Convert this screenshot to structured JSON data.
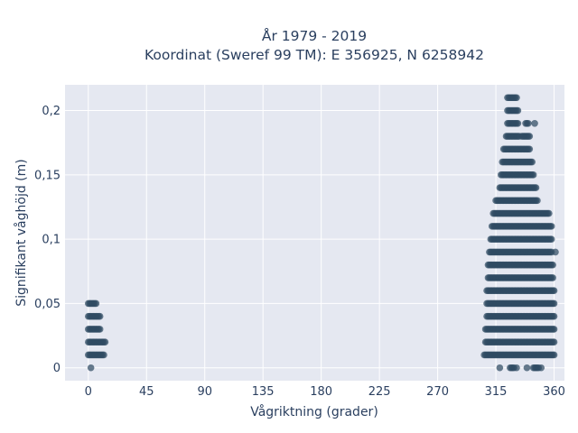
{
  "chart_data": {
    "type": "scatter",
    "title_line1": "År 1979 - 2019",
    "title_line2": "Koordinat (Sweref 99 TM): E 356925, N 6258942",
    "xlabel": "Vågriktning (grader)",
    "ylabel": "Signifikant våghöjd (m)",
    "xlim": [
      -18,
      368
    ],
    "ylim": [
      -0.01,
      0.22
    ],
    "xticks": [
      0,
      45,
      90,
      135,
      180,
      225,
      270,
      315,
      360
    ],
    "xtick_labels": [
      "0",
      "45",
      "90",
      "135",
      "180",
      "225",
      "270",
      "315",
      "360"
    ],
    "yticks": [
      0,
      0.05,
      0.1,
      0.15,
      0.2
    ],
    "ytick_labels": [
      "0",
      "0,05",
      "0,1",
      "0,15",
      "0,2"
    ],
    "grid": true,
    "marker_color": "#2f4b62",
    "background_color": "#e5e8f1",
    "series": [
      {
        "values": [
          {
            "y": 0.05,
            "x": [
              0,
              1,
              2,
              3,
              4,
              5,
              6
            ]
          },
          {
            "y": 0.04,
            "x": [
              0,
              1,
              2,
              3,
              4,
              5,
              6,
              7,
              8,
              9
            ]
          },
          {
            "y": 0.03,
            "x": [
              0,
              1,
              2,
              3,
              4,
              5,
              6,
              7,
              8,
              9
            ]
          },
          {
            "y": 0.02,
            "x": [
              0,
              1,
              2,
              3,
              4,
              5,
              6,
              7,
              8,
              9,
              10,
              11,
              12,
              13
            ]
          },
          {
            "y": 0.01,
            "x": [
              0,
              1,
              2,
              3,
              4,
              5,
              6,
              7,
              8,
              9,
              10,
              11,
              12
            ]
          },
          {
            "y": 0.0,
            "x": [
              2
            ]
          },
          {
            "y": 0.21,
            "x": [
              324,
              325,
              326,
              327,
              328,
              329,
              330,
              331
            ]
          },
          {
            "y": 0.2,
            "x": [
              324,
              325,
              326,
              327,
              328,
              329,
              330,
              331,
              332
            ]
          },
          {
            "y": 0.19,
            "x": [
              324,
              325,
              326,
              327,
              328,
              329,
              330,
              331,
              332,
              338,
              339,
              340,
              345
            ]
          },
          {
            "y": 0.18,
            "x": [
              323,
              324,
              325,
              326,
              327,
              328,
              329,
              330,
              331,
              332,
              333,
              335,
              336,
              337,
              338,
              339,
              340,
              341
            ]
          },
          {
            "y": 0.17,
            "x": [
              321,
              322,
              323,
              324,
              325,
              326,
              327,
              328,
              329,
              330,
              331,
              332,
              333,
              334,
              335,
              336,
              337,
              338,
              339,
              340,
              341
            ]
          },
          {
            "y": 0.16,
            "x": [
              320,
              321,
              322,
              323,
              324,
              325,
              326,
              327,
              328,
              329,
              330,
              331,
              332,
              333,
              334,
              335,
              336,
              337,
              338,
              339,
              340,
              341,
              342,
              343
            ]
          },
          {
            "y": 0.15,
            "x": [
              319,
              320,
              321,
              322,
              323,
              324,
              325,
              326,
              327,
              328,
              329,
              330,
              331,
              332,
              333,
              334,
              335,
              336,
              337,
              338,
              339,
              340,
              341,
              342,
              343,
              344
            ]
          },
          {
            "y": 0.14,
            "x": [
              318,
              319,
              320,
              321,
              322,
              323,
              324,
              325,
              326,
              327,
              328,
              329,
              330,
              331,
              332,
              333,
              334,
              335,
              336,
              337,
              338,
              339,
              340,
              341,
              342,
              343,
              344,
              345,
              346
            ]
          },
          {
            "y": 0.13,
            "x": [
              315,
              316,
              317,
              318,
              319,
              320,
              321,
              322,
              323,
              324,
              325,
              326,
              327,
              328,
              329,
              330,
              331,
              332,
              333,
              334,
              335,
              336,
              337,
              338,
              339,
              340,
              341,
              342,
              343,
              344,
              345,
              346,
              347
            ]
          },
          {
            "y": 0.12,
            "x": [
              313,
              314,
              315,
              316,
              317,
              318,
              319,
              320,
              321,
              322,
              323,
              324,
              325,
              326,
              327,
              328,
              329,
              330,
              331,
              332,
              333,
              334,
              335,
              336,
              337,
              338,
              339,
              340,
              341,
              342,
              343,
              344,
              345,
              346,
              347,
              348,
              349,
              350,
              351,
              352,
              353,
              354,
              355,
              356
            ]
          },
          {
            "y": 0.11,
            "x": [
              312,
              313,
              314,
              315,
              316,
              317,
              318,
              319,
              320,
              321,
              322,
              323,
              324,
              325,
              326,
              327,
              328,
              329,
              330,
              331,
              332,
              333,
              334,
              335,
              336,
              337,
              338,
              339,
              340,
              341,
              342,
              343,
              344,
              345,
              346,
              347,
              348,
              349,
              350,
              351,
              352,
              353,
              354,
              355,
              356,
              357,
              358
            ]
          },
          {
            "y": 0.1,
            "x": [
              311,
              312,
              313,
              314,
              315,
              316,
              317,
              318,
              319,
              320,
              321,
              322,
              323,
              324,
              325,
              326,
              327,
              328,
              329,
              330,
              331,
              332,
              333,
              334,
              335,
              336,
              337,
              338,
              339,
              340,
              341,
              342,
              343,
              344,
              345,
              346,
              347,
              348,
              349,
              350,
              351,
              352,
              353,
              354,
              355,
              356,
              357,
              358
            ]
          },
          {
            "y": 0.09,
            "x": [
              310,
              311,
              312,
              313,
              314,
              315,
              316,
              317,
              318,
              319,
              320,
              321,
              322,
              323,
              324,
              325,
              326,
              327,
              328,
              329,
              330,
              331,
              332,
              333,
              334,
              335,
              336,
              337,
              338,
              339,
              340,
              341,
              342,
              343,
              344,
              345,
              346,
              347,
              348,
              349,
              350,
              351,
              352,
              353,
              354,
              355,
              356,
              357,
              358,
              361
            ]
          },
          {
            "y": 0.08,
            "x": [
              309,
              310,
              311,
              312,
              313,
              314,
              315,
              316,
              317,
              318,
              319,
              320,
              321,
              322,
              323,
              324,
              325,
              326,
              327,
              328,
              329,
              330,
              331,
              332,
              333,
              334,
              335,
              336,
              337,
              338,
              339,
              340,
              341,
              342,
              343,
              344,
              345,
              346,
              347,
              348,
              349,
              350,
              351,
              352,
              353,
              354,
              355,
              356,
              357,
              358,
              359
            ]
          },
          {
            "y": 0.07,
            "x": [
              309,
              310,
              311,
              312,
              313,
              314,
              315,
              316,
              317,
              318,
              319,
              320,
              321,
              322,
              323,
              324,
              325,
              326,
              327,
              328,
              329,
              330,
              331,
              332,
              333,
              334,
              335,
              336,
              337,
              338,
              339,
              340,
              341,
              342,
              343,
              344,
              345,
              346,
              347,
              348,
              349,
              350,
              351,
              352,
              353,
              354,
              355,
              356,
              357,
              358,
              359
            ]
          },
          {
            "y": 0.06,
            "x": [
              308,
              309,
              310,
              311,
              312,
              313,
              314,
              315,
              316,
              317,
              318,
              319,
              320,
              321,
              322,
              323,
              324,
              325,
              326,
              327,
              328,
              329,
              330,
              331,
              332,
              333,
              334,
              335,
              336,
              337,
              338,
              339,
              340,
              341,
              342,
              343,
              344,
              345,
              346,
              347,
              348,
              349,
              350,
              351,
              352,
              353,
              354,
              355,
              356,
              357,
              358,
              359,
              360
            ]
          },
          {
            "y": 0.05,
            "x": [
              308,
              309,
              310,
              311,
              312,
              313,
              314,
              315,
              316,
              317,
              318,
              319,
              320,
              321,
              322,
              323,
              324,
              325,
              326,
              327,
              328,
              329,
              330,
              331,
              332,
              333,
              334,
              335,
              336,
              337,
              338,
              339,
              340,
              341,
              342,
              343,
              344,
              345,
              346,
              347,
              348,
              349,
              350,
              351,
              352,
              353,
              354,
              355,
              356,
              357,
              358,
              359,
              360
            ]
          },
          {
            "y": 0.04,
            "x": [
              308,
              309,
              310,
              311,
              312,
              313,
              314,
              315,
              316,
              317,
              318,
              319,
              320,
              321,
              322,
              323,
              324,
              325,
              326,
              327,
              328,
              329,
              330,
              331,
              332,
              333,
              334,
              335,
              336,
              337,
              338,
              339,
              340,
              341,
              342,
              343,
              344,
              345,
              346,
              347,
              348,
              349,
              350,
              351,
              352,
              353,
              354,
              355,
              356,
              357,
              358,
              359,
              360
            ]
          },
          {
            "y": 0.03,
            "x": [
              307,
              308,
              309,
              310,
              311,
              312,
              313,
              314,
              315,
              316,
              317,
              318,
              319,
              320,
              321,
              322,
              323,
              324,
              325,
              326,
              327,
              328,
              329,
              330,
              331,
              332,
              333,
              334,
              335,
              336,
              337,
              338,
              339,
              340,
              341,
              342,
              343,
              344,
              345,
              346,
              347,
              348,
              349,
              350,
              351,
              352,
              353,
              354,
              355,
              356,
              357,
              358,
              359,
              360
            ]
          },
          {
            "y": 0.02,
            "x": [
              307,
              308,
              309,
              310,
              311,
              312,
              313,
              314,
              315,
              316,
              317,
              318,
              319,
              320,
              321,
              322,
              323,
              324,
              325,
              326,
              327,
              328,
              329,
              330,
              331,
              332,
              333,
              334,
              335,
              336,
              337,
              338,
              339,
              340,
              341,
              342,
              343,
              344,
              345,
              346,
              347,
              348,
              349,
              350,
              351,
              352,
              353,
              354,
              355,
              356,
              357,
              358,
              359,
              360
            ]
          },
          {
            "y": 0.01,
            "x": [
              306,
              307,
              308,
              309,
              310,
              311,
              312,
              313,
              314,
              315,
              316,
              317,
              318,
              319,
              320,
              321,
              322,
              323,
              324,
              325,
              326,
              327,
              328,
              329,
              330,
              331,
              332,
              333,
              334,
              335,
              336,
              337,
              338,
              339,
              340,
              341,
              342,
              343,
              344,
              345,
              346,
              347,
              348,
              349,
              350,
              351,
              352,
              353,
              354,
              355,
              356,
              357,
              358,
              359,
              360
            ]
          },
          {
            "y": 0.0,
            "x": [
              318,
              326,
              327,
              328,
              329,
              331,
              339,
              344,
              345,
              346,
              347,
              348,
              350
            ]
          }
        ]
      }
    ]
  }
}
